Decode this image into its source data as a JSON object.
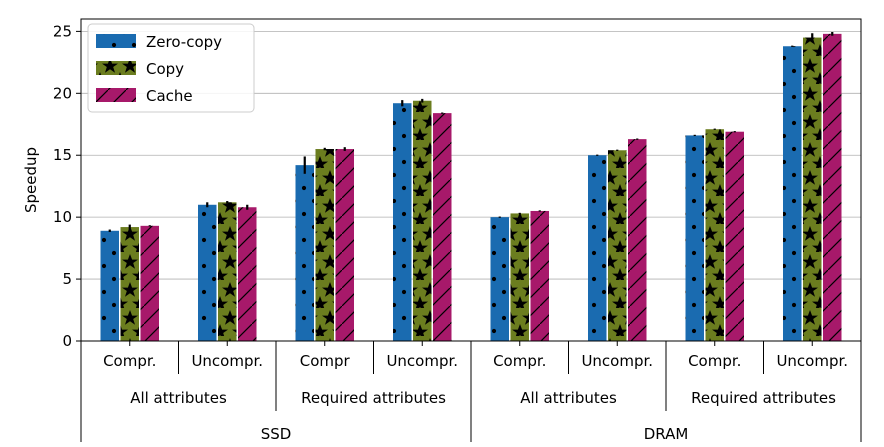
{
  "chart_data": {
    "type": "bar",
    "ylabel": "Speedup",
    "xlabel": "",
    "ylim": [
      0,
      26
    ],
    "yticks": [
      0,
      5,
      10,
      15,
      20,
      25
    ],
    "grid": "horizontal",
    "legend_position": "top-left",
    "categories": [
      "SSD / All attributes / Compr.",
      "SSD / All attributes / Uncompr.",
      "SSD / Required attributes / Compr",
      "SSD / Required attributes / Uncompr.",
      "DRAM / All attributes / Compr.",
      "DRAM / All attributes / Uncompr.",
      "DRAM / Required attributes / Compr.",
      "DRAM / Required attributes / Uncompr."
    ],
    "tick_labels_level1": [
      "Compr.",
      "Uncompr.",
      "Compr",
      "Uncompr.",
      "Compr.",
      "Uncompr.",
      "Compr.",
      "Uncompr."
    ],
    "tick_labels_level2": [
      "All attributes",
      "Required attributes",
      "All attributes",
      "Required attributes"
    ],
    "tick_labels_level3": [
      "SSD",
      "DRAM"
    ],
    "series": [
      {
        "name": "Zero-copy",
        "color": "#1a6bb0",
        "pattern": "dots",
        "values": [
          8.9,
          11.0,
          14.2,
          19.2,
          10.0,
          15.0,
          16.6,
          23.8
        ],
        "errors": [
          0.1,
          0.2,
          0.7,
          0.25,
          0.05,
          0.05,
          0.05,
          0.05
        ]
      },
      {
        "name": "Copy",
        "color": "#6b7d1f",
        "pattern": "stars",
        "values": [
          9.2,
          11.2,
          15.5,
          19.4,
          10.3,
          15.4,
          17.1,
          24.5
        ],
        "errors": [
          0.2,
          0.1,
          0.1,
          0.15,
          0.05,
          0.05,
          0.05,
          0.35
        ]
      },
      {
        "name": "Cache",
        "color": "#a7196a",
        "pattern": "slashes",
        "values": [
          9.3,
          10.8,
          15.5,
          18.4,
          10.5,
          16.3,
          16.9,
          24.8
        ],
        "errors": [
          0.05,
          0.2,
          0.15,
          0.05,
          0.05,
          0.05,
          0.05,
          0.15
        ]
      }
    ]
  }
}
